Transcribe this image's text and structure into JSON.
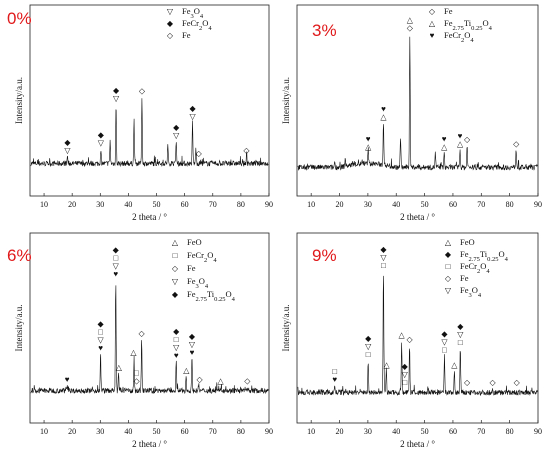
{
  "symbols": {
    "magnetite": "▽",
    "chromite": "◆",
    "iron": "◇",
    "titanomagnetite": "△",
    "wustite": "△",
    "heart": "♥",
    "square": "□"
  },
  "chart_data": [
    {
      "type": "line",
      "label": "0%",
      "xlabel": "2 theta / °",
      "ylabel": "Intensity/a.u.",
      "xlim": [
        5,
        90
      ],
      "xticks": [
        10,
        20,
        30,
        40,
        50,
        60,
        70,
        80,
        90
      ],
      "legend": [
        {
          "symbol": "▽",
          "text": "Fe3O4"
        },
        {
          "symbol": "◆",
          "text": "FeCr2O4"
        },
        {
          "symbol": "◇",
          "text": "Fe"
        }
      ],
      "peaks": [
        {
          "x": 18.3,
          "h": 0.05
        },
        {
          "x": 30.2,
          "h": 0.1
        },
        {
          "x": 33.5,
          "h": 0.15
        },
        {
          "x": 35.6,
          "h": 0.4
        },
        {
          "x": 42.0,
          "h": 0.3
        },
        {
          "x": 44.8,
          "h": 0.45
        },
        {
          "x": 54.0,
          "h": 0.12
        },
        {
          "x": 57.0,
          "h": 0.15
        },
        {
          "x": 62.8,
          "h": 0.28
        },
        {
          "x": 64.0,
          "h": 0.1
        },
        {
          "x": 82.0,
          "h": 0.05
        }
      ],
      "markers": [
        {
          "x": 18.3,
          "stack": [
            "◆",
            "▽"
          ]
        },
        {
          "x": 30.2,
          "stack": [
            "◆",
            "▽"
          ]
        },
        {
          "x": 35.6,
          "stack": [
            "◆",
            "▽"
          ]
        },
        {
          "x": 44.8,
          "stack": [
            "◇"
          ]
        },
        {
          "x": 57.0,
          "stack": [
            "◆",
            "▽"
          ]
        },
        {
          "x": 62.8,
          "stack": [
            "◆",
            "▽"
          ]
        },
        {
          "x": 65.0,
          "stack": [
            "◇"
          ]
        },
        {
          "x": 82.0,
          "stack": [
            "◇"
          ]
        }
      ]
    },
    {
      "type": "line",
      "label": "3%",
      "xlabel": "2 theta / °",
      "ylabel": "Intensity/a.u.",
      "xlim": [
        5,
        90
      ],
      "xticks": [
        10,
        20,
        30,
        40,
        50,
        60,
        70,
        80,
        90
      ],
      "legend": [
        {
          "symbol": "◇",
          "text": "Fe"
        },
        {
          "symbol": "△",
          "text": "Fe2.75Ti0.25O4"
        },
        {
          "symbol": "♥",
          "text": "FeCr2O4"
        }
      ],
      "peaks": [
        {
          "x": 18.3,
          "h": 0.04
        },
        {
          "x": 22.0,
          "h": 0.05
        },
        {
          "x": 30.1,
          "h": 0.1
        },
        {
          "x": 35.5,
          "h": 0.3
        },
        {
          "x": 41.5,
          "h": 0.2
        },
        {
          "x": 44.8,
          "h": 0.9
        },
        {
          "x": 53.8,
          "h": 0.1
        },
        {
          "x": 56.9,
          "h": 0.1
        },
        {
          "x": 62.5,
          "h": 0.12
        },
        {
          "x": 65.0,
          "h": 0.15
        },
        {
          "x": 82.3,
          "h": 0.12
        }
      ],
      "markers": [
        {
          "x": 30.1,
          "stack": [
            "♥",
            "△"
          ]
        },
        {
          "x": 35.5,
          "stack": [
            "♥",
            "△"
          ]
        },
        {
          "x": 44.8,
          "stack": [
            "△",
            "◇"
          ]
        },
        {
          "x": 56.9,
          "stack": [
            "♥",
            "△"
          ]
        },
        {
          "x": 62.5,
          "stack": [
            "♥",
            "△"
          ]
        },
        {
          "x": 65.0,
          "stack": [
            "◇"
          ]
        },
        {
          "x": 82.3,
          "stack": [
            "◇"
          ]
        }
      ]
    },
    {
      "type": "line",
      "label": "6%",
      "xlabel": "2 theta / °",
      "ylabel": "Intensity/a.u.",
      "xlim": [
        5,
        90
      ],
      "xticks": [
        10,
        20,
        30,
        40,
        50,
        60,
        70,
        80,
        90
      ],
      "legend": [
        {
          "symbol": "△",
          "text": "FeO"
        },
        {
          "symbol": "□",
          "text": "FeCr2O4"
        },
        {
          "symbol": "◇",
          "text": "Fe"
        },
        {
          "symbol": "▽",
          "text": "Fe3O4"
        },
        {
          "symbol": "◆",
          "text": "Fe2.75Ti0.25O4"
        }
      ],
      "peaks": [
        {
          "x": 18.2,
          "h": 0.04
        },
        {
          "x": 30.1,
          "h": 0.25
        },
        {
          "x": 35.5,
          "h": 0.75
        },
        {
          "x": 36.5,
          "h": 0.12
        },
        {
          "x": 42.0,
          "h": 0.22
        },
        {
          "x": 44.7,
          "h": 0.35
        },
        {
          "x": 57.0,
          "h": 0.2
        },
        {
          "x": 60.5,
          "h": 0.1
        },
        {
          "x": 62.6,
          "h": 0.22
        },
        {
          "x": 65.0,
          "h": 0.04
        },
        {
          "x": 73.0,
          "h": 0.03
        }
      ],
      "markers": [
        {
          "x": 18.2,
          "stack": [
            "♥"
          ]
        },
        {
          "x": 30.1,
          "stack": [
            "◆",
            "□",
            "▽",
            "♥"
          ]
        },
        {
          "x": 35.5,
          "stack": [
            "◆",
            "□",
            "▽",
            "♥"
          ]
        },
        {
          "x": 36.6,
          "stack": [
            "△"
          ]
        },
        {
          "x": 41.8,
          "stack": [
            "△"
          ]
        },
        {
          "x": 42.9,
          "stack": [
            "□",
            "◇"
          ]
        },
        {
          "x": 44.7,
          "stack": [
            "◇"
          ]
        },
        {
          "x": 57.0,
          "stack": [
            "◆",
            "□",
            "▽",
            "♥"
          ]
        },
        {
          "x": 60.6,
          "stack": [
            "△"
          ]
        },
        {
          "x": 62.6,
          "stack": [
            "◆",
            "▽",
            "♥"
          ]
        },
        {
          "x": 65.3,
          "stack": [
            "◇"
          ]
        },
        {
          "x": 72.8,
          "stack": [
            "△"
          ]
        },
        {
          "x": 82.3,
          "stack": [
            "◇"
          ]
        }
      ]
    },
    {
      "type": "line",
      "label": "9%",
      "xlabel": "2 theta / °",
      "ylabel": "Intensity/a.u.",
      "xlim": [
        5,
        90
      ],
      "xticks": [
        10,
        20,
        30,
        40,
        50,
        60,
        70,
        80,
        90
      ],
      "legend": [
        {
          "symbol": "△",
          "text": "FeO"
        },
        {
          "symbol": "◆",
          "text": "Fe2.75Ti0.25O4"
        },
        {
          "symbol": "□",
          "text": "FeCr2O4"
        },
        {
          "symbol": "◇",
          "text": "Fe"
        },
        {
          "symbol": "▽",
          "text": "Fe3O4"
        }
      ],
      "peaks": [
        {
          "x": 18.3,
          "h": 0.05
        },
        {
          "x": 30.1,
          "h": 0.22
        },
        {
          "x": 35.5,
          "h": 0.82
        },
        {
          "x": 36.5,
          "h": 0.15
        },
        {
          "x": 41.9,
          "h": 0.35
        },
        {
          "x": 44.7,
          "h": 0.32
        },
        {
          "x": 57.0,
          "h": 0.25
        },
        {
          "x": 60.5,
          "h": 0.15
        },
        {
          "x": 62.6,
          "h": 0.3
        },
        {
          "x": 74.0,
          "h": 0.03
        }
      ],
      "markers": [
        {
          "x": 18.3,
          "stack": [
            "□",
            "♥"
          ]
        },
        {
          "x": 30.1,
          "stack": [
            "◆",
            "▽",
            "□"
          ]
        },
        {
          "x": 35.5,
          "stack": [
            "◆",
            "▽",
            "□"
          ]
        },
        {
          "x": 36.6,
          "stack": [
            "△"
          ]
        },
        {
          "x": 41.9,
          "stack": [
            "△"
          ]
        },
        {
          "x": 43.0,
          "stack": [
            "◆",
            "▽",
            "□"
          ]
        },
        {
          "x": 44.7,
          "stack": [
            "◇"
          ]
        },
        {
          "x": 57.0,
          "stack": [
            "◆",
            "▽",
            "□"
          ]
        },
        {
          "x": 60.5,
          "stack": [
            "△"
          ]
        },
        {
          "x": 62.6,
          "stack": [
            "◆",
            "▽",
            "□"
          ]
        },
        {
          "x": 65.0,
          "stack": [
            "◇"
          ]
        },
        {
          "x": 74.0,
          "stack": [
            "◇"
          ]
        },
        {
          "x": 82.5,
          "stack": [
            "◇"
          ]
        }
      ]
    }
  ]
}
